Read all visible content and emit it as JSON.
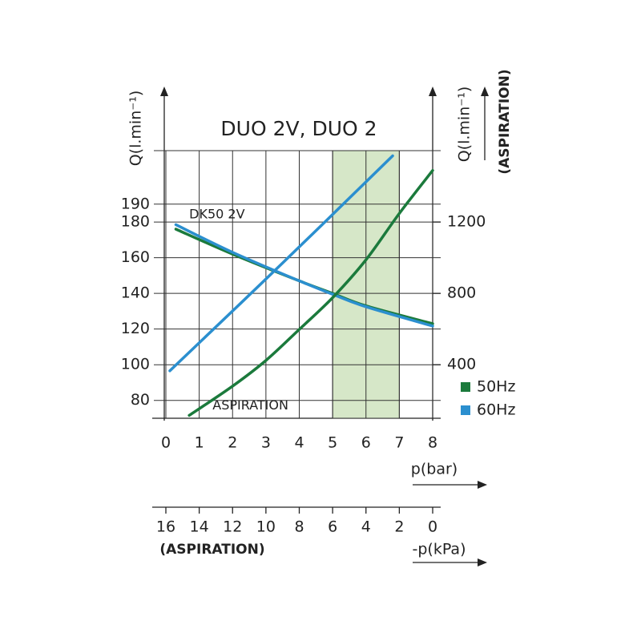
{
  "chart_data": {
    "type": "line",
    "title": "DUO 2V, DUO 2",
    "y_label": "Q(l.min⁻¹)",
    "y2_label": "Q(l.min⁻¹)",
    "y2_label_note": "(ASPIRATION)",
    "x_label": "p(bar)",
    "x2_label": "-p(kPa)",
    "x2_label_note": "(ASPIRATION)",
    "annotations": [
      {
        "text": "DK50 2V",
        "x": 0.7,
        "y": 184
      },
      {
        "text": "ASPIRATION",
        "x": 1.4,
        "y": 77
      }
    ],
    "xlim": [
      0,
      8
    ],
    "xticks": [
      0,
      1,
      2,
      3,
      4,
      5,
      6,
      7,
      8
    ],
    "x2lim": [
      16,
      0
    ],
    "x2ticks": [
      16,
      14,
      12,
      10,
      8,
      6,
      4,
      2,
      0
    ],
    "ylim": [
      70,
      220
    ],
    "yticks": [
      80,
      100,
      120,
      140,
      160,
      180,
      190
    ],
    "y2lim": [
      100,
      1600
    ],
    "y2ticks": [
      400,
      800,
      1200
    ],
    "highlight_x": [
      5,
      7
    ],
    "highlight_color": "#d6e7c8",
    "grid": true,
    "series": [
      {
        "color": "#1b7a3c",
        "x": [
          0.3,
          2,
          4,
          5,
          6,
          8
        ],
        "values": [
          176,
          162,
          147,
          140,
          133,
          123
        ]
      },
      {
        "color": "#2b8fcf",
        "x": [
          0.3,
          2,
          4,
          5,
          6,
          8
        ],
        "values": [
          178.5,
          163,
          147,
          139.5,
          132.5,
          121.7
        ]
      },
      {
        "color": "#1b7a3c",
        "axis": "y2",
        "x": [
          0.7,
          2,
          3,
          4,
          5,
          6,
          7,
          8
        ],
        "values": [
          116,
          280,
          424,
          598,
          776,
          988,
          1248,
          1489
        ]
      },
      {
        "color": "#2b8fcf",
        "axis": "y2",
        "x": [
          0.12,
          3.5,
          6.8
        ],
        "values": [
          366,
          970,
          1571
        ]
      }
    ],
    "legend": [
      {
        "name": "50Hz",
        "color": "#1b7a3c"
      },
      {
        "name": "60Hz",
        "color": "#2b8fcf"
      }
    ]
  }
}
